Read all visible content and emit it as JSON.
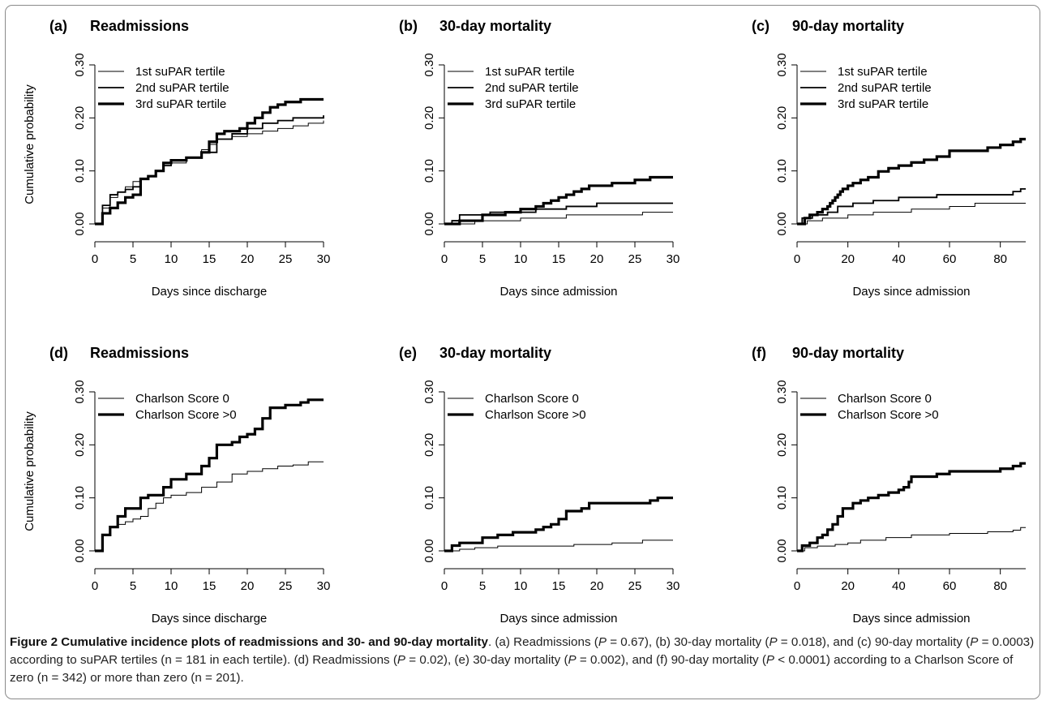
{
  "figure": {
    "y_label": "Cumulative probability",
    "caption": {
      "bold": "Figure 2 Cumulative incidence plots of readmissions and 30- and 90-day mortality",
      "parts": [
        {
          "t": ". (a) Readmissions ("
        },
        {
          "t": "P",
          "i": true
        },
        {
          "t": " = 0.67), (b) 30-day mortality ("
        },
        {
          "t": "P",
          "i": true
        },
        {
          "t": " = 0.018), and (c) 90-day mortality ("
        },
        {
          "t": "P",
          "i": true
        },
        {
          "t": " = 0.0003) according to suPAR tertiles (n = 181 in each tertile). (d) Readmissions ("
        },
        {
          "t": "P",
          "i": true
        },
        {
          "t": " = 0.02), (e) 30-day mortality ("
        },
        {
          "t": "P",
          "i": true
        },
        {
          "t": " = 0.002), and (f) 90-day mortality ("
        },
        {
          "t": "P",
          "i": true
        },
        {
          "t": " < 0.0001) according to a Charlson Score of zero (n = 342) or more than zero (n = 201)."
        }
      ]
    }
  },
  "chart_data": [
    {
      "type": "line",
      "letter": "(a)",
      "title": "Readmissions",
      "xlabel": "Days since discharge",
      "ylabel": "Cumulative probability",
      "xlim": [
        0,
        30
      ],
      "ylim": [
        0,
        0.3
      ],
      "xticks": [
        "0",
        "5",
        "10",
        "15",
        "20",
        "25",
        "30"
      ],
      "yticks": [
        "0.00",
        "0.10",
        "0.20",
        "0.30"
      ],
      "legend_position": "top-left",
      "series": [
        {
          "name": "1st suPAR tertile",
          "weight": "thin",
          "x": [
            0,
            1,
            2,
            3,
            4,
            5,
            6,
            7,
            8,
            9,
            10,
            12,
            14,
            15,
            16,
            18,
            20,
            22,
            24,
            26,
            28,
            30
          ],
          "y": [
            0,
            0.03,
            0.05,
            0.06,
            0.07,
            0.08,
            0.085,
            0.09,
            0.1,
            0.11,
            0.115,
            0.125,
            0.14,
            0.15,
            0.16,
            0.165,
            0.17,
            0.175,
            0.18,
            0.185,
            0.19,
            0.195
          ]
        },
        {
          "name": "2nd suPAR tertile",
          "weight": "medium",
          "x": [
            0,
            1,
            2,
            3,
            4,
            5,
            6,
            7,
            8,
            9,
            10,
            12,
            14,
            16,
            18,
            20,
            22,
            24,
            26,
            28,
            30
          ],
          "y": [
            0,
            0.035,
            0.055,
            0.06,
            0.065,
            0.07,
            0.085,
            0.09,
            0.1,
            0.11,
            0.12,
            0.125,
            0.135,
            0.16,
            0.17,
            0.18,
            0.19,
            0.195,
            0.2,
            0.2,
            0.205
          ]
        },
        {
          "name": "3rd suPAR tertile",
          "weight": "thick",
          "x": [
            0,
            1,
            2,
            3,
            4,
            5,
            6,
            7,
            8,
            9,
            10,
            11,
            12,
            13,
            14,
            15,
            16,
            17,
            18,
            19,
            20,
            21,
            22,
            23,
            24,
            25,
            26,
            27,
            28,
            30
          ],
          "y": [
            0,
            0.02,
            0.03,
            0.04,
            0.05,
            0.055,
            0.085,
            0.09,
            0.1,
            0.115,
            0.12,
            0.12,
            0.125,
            0.125,
            0.135,
            0.155,
            0.17,
            0.175,
            0.175,
            0.18,
            0.19,
            0.2,
            0.21,
            0.22,
            0.225,
            0.23,
            0.23,
            0.235,
            0.235,
            0.235
          ]
        }
      ]
    },
    {
      "type": "line",
      "letter": "(b)",
      "title": "30-day mortality",
      "xlabel": "Days since admission",
      "ylabel": "",
      "xlim": [
        0,
        30
      ],
      "ylim": [
        0,
        0.3
      ],
      "xticks": [
        "0",
        "5",
        "10",
        "15",
        "20",
        "25",
        "30"
      ],
      "yticks": [
        "0.00",
        "0.10",
        "0.20",
        "0.30"
      ],
      "legend_position": "top-left",
      "series": [
        {
          "name": "1st suPAR tertile",
          "weight": "thin",
          "x": [
            0,
            4,
            10,
            16,
            26,
            30
          ],
          "y": [
            0,
            0.006,
            0.011,
            0.017,
            0.022,
            0.022
          ]
        },
        {
          "name": "2nd suPAR tertile",
          "weight": "medium",
          "x": [
            0,
            1,
            2,
            6,
            12,
            16,
            20,
            30
          ],
          "y": [
            0,
            0.006,
            0.017,
            0.022,
            0.028,
            0.033,
            0.039,
            0.039
          ]
        },
        {
          "name": "3rd suPAR tertile",
          "weight": "thick",
          "x": [
            0,
            2,
            5,
            8,
            10,
            12,
            13,
            14,
            15,
            16,
            17,
            18,
            19,
            20,
            22,
            25,
            27,
            28,
            30
          ],
          "y": [
            0,
            0.006,
            0.017,
            0.022,
            0.028,
            0.033,
            0.039,
            0.044,
            0.05,
            0.055,
            0.061,
            0.066,
            0.072,
            0.072,
            0.077,
            0.083,
            0.088,
            0.088,
            0.088
          ]
        }
      ]
    },
    {
      "type": "line",
      "letter": "(c)",
      "title": "90-day mortality",
      "xlabel": "Days since admission",
      "ylabel": "",
      "xlim": [
        0,
        90
      ],
      "ylim": [
        0,
        0.3
      ],
      "xticks": [
        "0",
        "20",
        "40",
        "60",
        "80"
      ],
      "yticks": [
        "0.00",
        "0.10",
        "0.20",
        "0.30"
      ],
      "legend_position": "top-left",
      "series": [
        {
          "name": "1st suPAR tertile",
          "weight": "thin",
          "x": [
            0,
            4,
            10,
            20,
            30,
            45,
            60,
            70,
            90
          ],
          "y": [
            0,
            0.006,
            0.011,
            0.017,
            0.022,
            0.028,
            0.033,
            0.039,
            0.039
          ]
        },
        {
          "name": "2nd suPAR tertile",
          "weight": "medium",
          "x": [
            0,
            2,
            6,
            12,
            16,
            22,
            30,
            40,
            55,
            70,
            85,
            88,
            90
          ],
          "y": [
            0,
            0.011,
            0.017,
            0.022,
            0.033,
            0.039,
            0.044,
            0.05,
            0.055,
            0.055,
            0.061,
            0.066,
            0.066
          ]
        },
        {
          "name": "3rd suPAR tertile",
          "weight": "thick",
          "x": [
            0,
            3,
            5,
            8,
            10,
            12,
            13,
            14,
            15,
            16,
            17,
            18,
            20,
            22,
            25,
            28,
            32,
            36,
            40,
            45,
            50,
            55,
            60,
            70,
            75,
            80,
            85,
            88,
            90
          ],
          "y": [
            0,
            0.011,
            0.017,
            0.022,
            0.028,
            0.033,
            0.039,
            0.044,
            0.05,
            0.055,
            0.061,
            0.066,
            0.072,
            0.077,
            0.083,
            0.088,
            0.099,
            0.105,
            0.11,
            0.116,
            0.121,
            0.127,
            0.138,
            0.138,
            0.144,
            0.149,
            0.155,
            0.16,
            0.16
          ]
        }
      ]
    },
    {
      "type": "line",
      "letter": "(d)",
      "title": "Readmissions",
      "xlabel": "Days since discharge",
      "ylabel": "Cumulative probability",
      "xlim": [
        0,
        30
      ],
      "ylim": [
        0,
        0.3
      ],
      "xticks": [
        "0",
        "5",
        "10",
        "15",
        "20",
        "25",
        "30"
      ],
      "yticks": [
        "0.00",
        "0.10",
        "0.20",
        "0.30"
      ],
      "legend_position": "top-left",
      "series": [
        {
          "name": "Charlson Score 0",
          "weight": "thin",
          "x": [
            0,
            1,
            2,
            3,
            4,
            5,
            6,
            7,
            8,
            9,
            10,
            12,
            14,
            16,
            18,
            20,
            22,
            24,
            26,
            28,
            30
          ],
          "y": [
            0,
            0.03,
            0.045,
            0.05,
            0.055,
            0.06,
            0.065,
            0.08,
            0.09,
            0.1,
            0.105,
            0.11,
            0.12,
            0.13,
            0.145,
            0.15,
            0.155,
            0.16,
            0.162,
            0.168,
            0.168
          ]
        },
        {
          "name": "Charlson Score >0",
          "weight": "thick",
          "x": [
            0,
            1,
            2,
            3,
            4,
            6,
            7,
            9,
            10,
            12,
            14,
            15,
            16,
            18,
            19,
            20,
            21,
            22,
            23,
            25,
            27,
            28,
            30
          ],
          "y": [
            0,
            0.03,
            0.045,
            0.065,
            0.08,
            0.1,
            0.105,
            0.12,
            0.135,
            0.145,
            0.16,
            0.175,
            0.2,
            0.205,
            0.215,
            0.22,
            0.23,
            0.25,
            0.27,
            0.275,
            0.28,
            0.285,
            0.285
          ]
        }
      ]
    },
    {
      "type": "line",
      "letter": "(e)",
      "title": "30-day mortality",
      "xlabel": "Days since admission",
      "ylabel": "",
      "xlim": [
        0,
        30
      ],
      "ylim": [
        0,
        0.3
      ],
      "xticks": [
        "0",
        "5",
        "10",
        "15",
        "20",
        "25",
        "30"
      ],
      "yticks": [
        "0.00",
        "0.10",
        "0.20",
        "0.30"
      ],
      "legend_position": "top-left",
      "series": [
        {
          "name": "Charlson Score 0",
          "weight": "thin",
          "x": [
            0,
            2,
            4,
            7,
            17,
            22,
            26,
            30
          ],
          "y": [
            0,
            0.003,
            0.006,
            0.009,
            0.012,
            0.015,
            0.02,
            0.02
          ]
        },
        {
          "name": "Charlson Score >0",
          "weight": "thick",
          "x": [
            0,
            1,
            2,
            5,
            7,
            9,
            12,
            13,
            14,
            15,
            16,
            18,
            19,
            27,
            28,
            30
          ],
          "y": [
            0,
            0.01,
            0.015,
            0.025,
            0.03,
            0.035,
            0.04,
            0.045,
            0.05,
            0.06,
            0.075,
            0.08,
            0.09,
            0.095,
            0.1,
            0.1
          ]
        }
      ]
    },
    {
      "type": "line",
      "letter": "(f)",
      "title": "90-day mortality",
      "xlabel": "Days since admission",
      "ylabel": "",
      "xlim": [
        0,
        90
      ],
      "ylim": [
        0,
        0.3
      ],
      "xticks": [
        "0",
        "20",
        "40",
        "60",
        "80"
      ],
      "yticks": [
        "0.00",
        "0.10",
        "0.20",
        "0.30"
      ],
      "legend_position": "top-left",
      "series": [
        {
          "name": "Charlson Score 0",
          "weight": "thin",
          "x": [
            0,
            3,
            8,
            15,
            20,
            25,
            35,
            45,
            60,
            75,
            85,
            88,
            90
          ],
          "y": [
            0,
            0.006,
            0.009,
            0.012,
            0.015,
            0.02,
            0.025,
            0.03,
            0.033,
            0.036,
            0.039,
            0.044,
            0.044
          ]
        },
        {
          "name": "Charlson Score >0",
          "weight": "thick",
          "x": [
            0,
            2,
            5,
            8,
            10,
            12,
            14,
            16,
            18,
            22,
            25,
            28,
            32,
            36,
            40,
            42,
            44,
            45,
            55,
            60,
            75,
            80,
            85,
            88,
            90
          ],
          "y": [
            0,
            0.01,
            0.015,
            0.025,
            0.03,
            0.04,
            0.05,
            0.065,
            0.08,
            0.09,
            0.095,
            0.1,
            0.105,
            0.11,
            0.115,
            0.12,
            0.13,
            0.14,
            0.145,
            0.15,
            0.15,
            0.155,
            0.16,
            0.165,
            0.165
          ]
        }
      ]
    }
  ]
}
